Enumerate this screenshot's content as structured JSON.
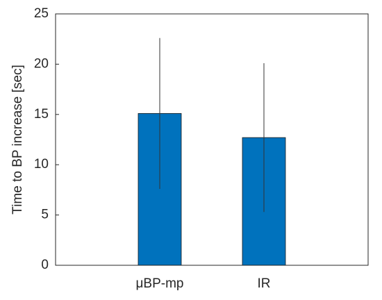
{
  "chart_data": {
    "type": "bar",
    "y_label": "Time to BP increase [sec]",
    "categories": [
      "μBP-mp",
      "IR"
    ],
    "values": [
      15.1,
      12.7
    ],
    "errors": [
      7.5,
      7.4
    ],
    "color": "#0072BD",
    "ylim": [
      0,
      25
    ],
    "yticks": [
      0,
      5,
      10,
      15,
      20,
      25
    ]
  }
}
